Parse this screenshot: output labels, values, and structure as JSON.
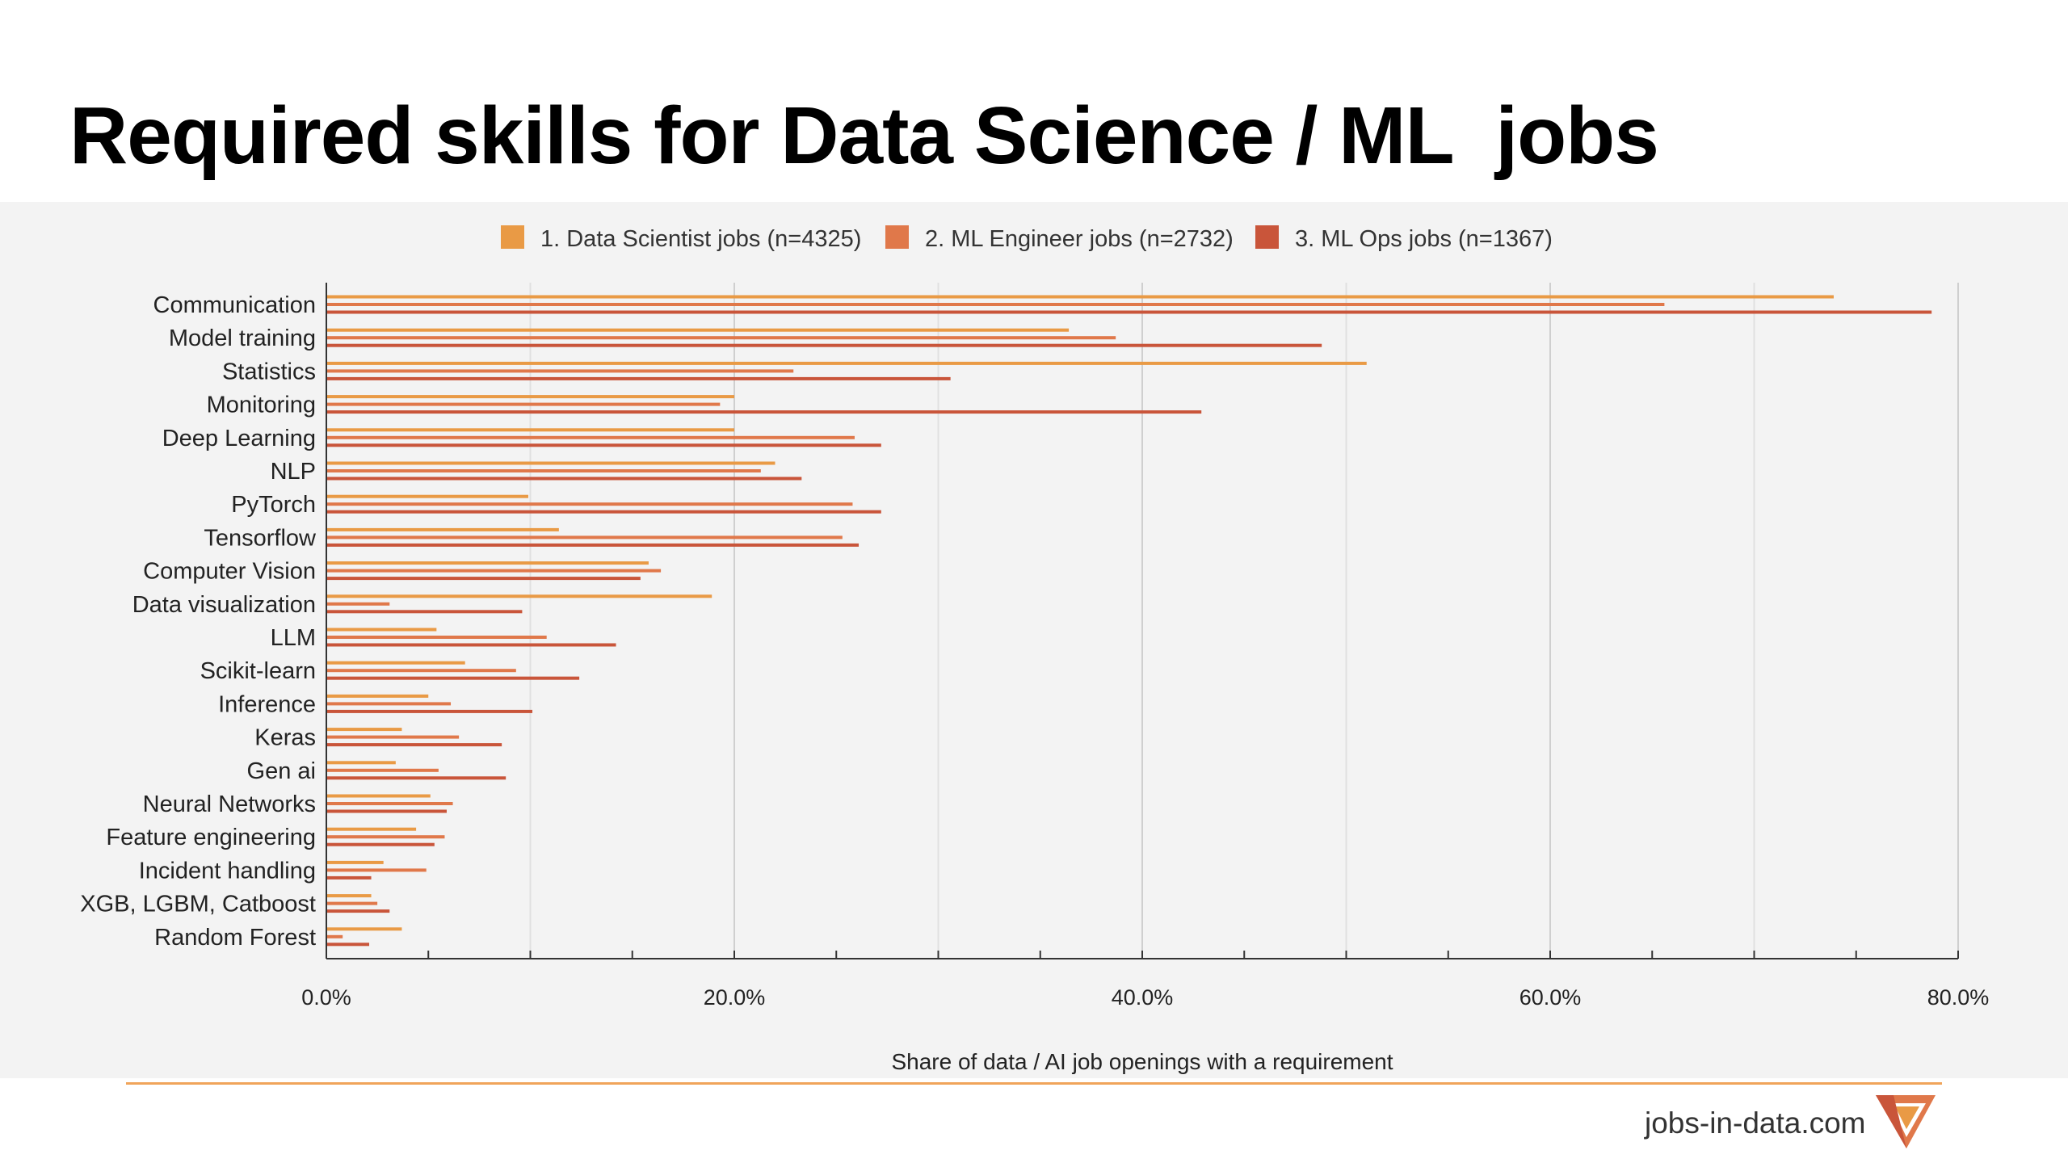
{
  "title": "Required skills for Data Science / ML  jobs",
  "footer": {
    "site": "jobs-in-data.com"
  },
  "colors": {
    "rule": "#f0a45a",
    "grid": "#d9d9d9",
    "axis": "#333333"
  },
  "chart_data": {
    "type": "bar",
    "orientation": "horizontal",
    "title": "",
    "xlabel": "Share of data / AI job openings with a requirement",
    "ylabel": "",
    "xlim": [
      0,
      80
    ],
    "x_ticks": [
      "0.0%",
      "20.0%",
      "40.0%",
      "60.0%",
      "80.0%"
    ],
    "grid": true,
    "legend_position": "top",
    "categories": [
      "Communication",
      "Model training",
      "Statistics",
      "Monitoring",
      "Deep Learning",
      "NLP",
      "PyTorch",
      "Tensorflow",
      "Computer Vision",
      "Data visualization",
      "LLM",
      "Scikit-learn",
      "Inference",
      "Keras",
      "Gen ai",
      "Neural Networks",
      "Feature engineering",
      "Incident handling",
      "XGB, LGBM, Catboost",
      "Random Forest"
    ],
    "series": [
      {
        "name": "1. Data Scientist jobs (n=4325)",
        "color": "#e99a45",
        "values": [
          73.9,
          36.4,
          51.0,
          20.0,
          20.0,
          22.0,
          9.9,
          11.4,
          15.8,
          18.9,
          5.4,
          6.8,
          5.0,
          3.7,
          3.4,
          5.1,
          4.4,
          2.8,
          2.2,
          3.7
        ]
      },
      {
        "name": "2. ML Engineer jobs (n=2732)",
        "color": "#e0784a",
        "values": [
          65.6,
          38.7,
          22.9,
          19.3,
          25.9,
          21.3,
          25.8,
          25.3,
          16.4,
          3.1,
          10.8,
          9.3,
          6.1,
          6.5,
          5.5,
          6.2,
          5.8,
          4.9,
          2.5,
          0.8
        ]
      },
      {
        "name": "3. ML Ops jobs (n=1367)",
        "color": "#c9553a",
        "values": [
          78.7,
          48.8,
          30.6,
          42.9,
          27.2,
          23.3,
          27.2,
          26.1,
          15.4,
          9.6,
          14.2,
          12.4,
          10.1,
          8.6,
          8.8,
          5.9,
          5.3,
          2.2,
          3.1,
          2.1
        ]
      }
    ]
  }
}
